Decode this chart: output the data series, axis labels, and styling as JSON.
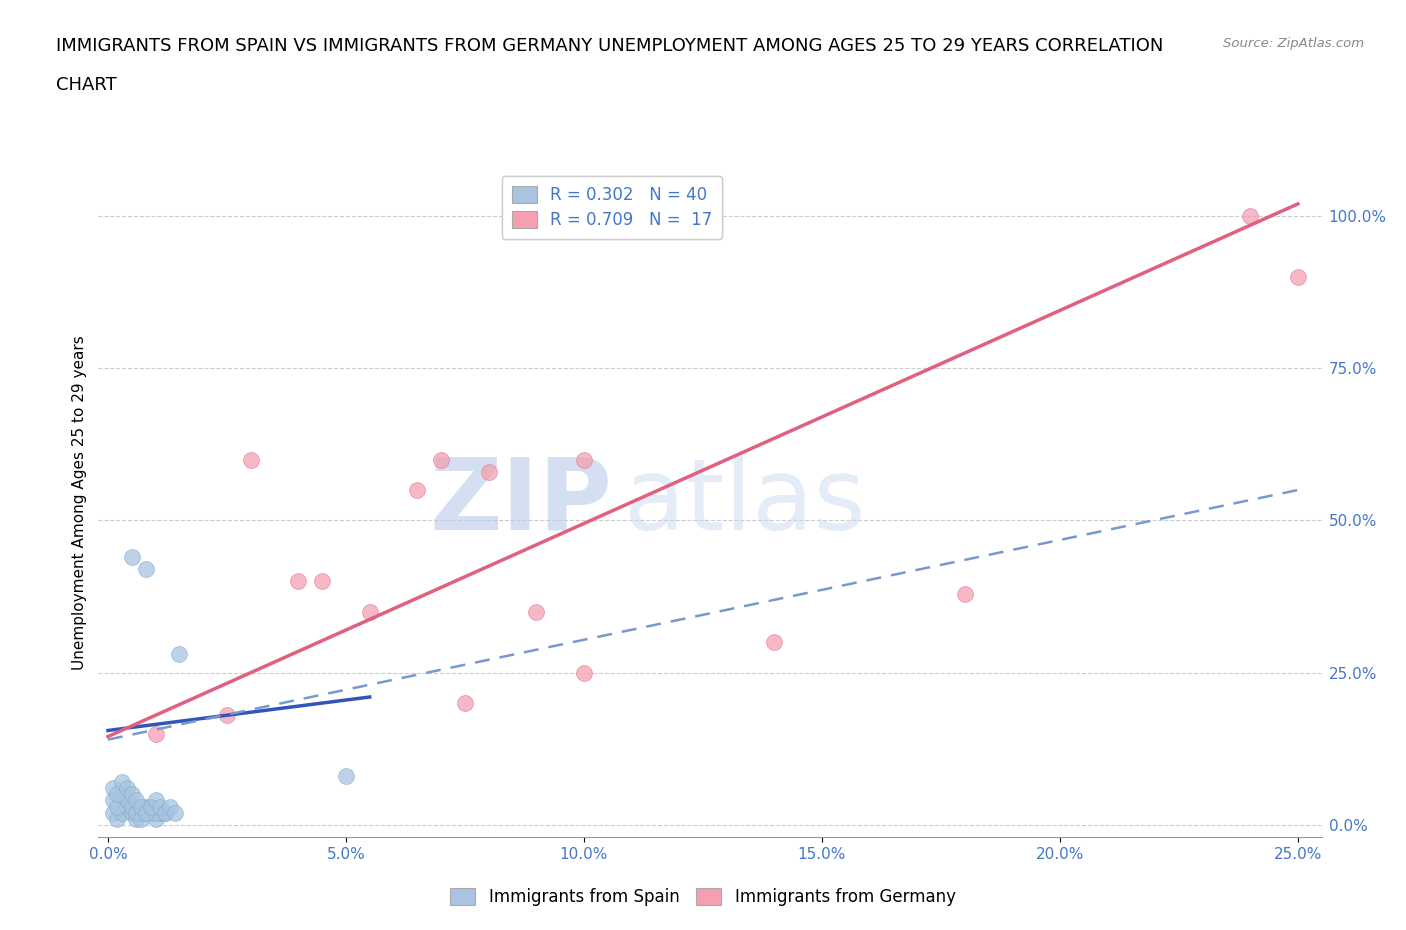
{
  "title_line1": "IMMIGRANTS FROM SPAIN VS IMMIGRANTS FROM GERMANY UNEMPLOYMENT AMONG AGES 25 TO 29 YEARS CORRELATION",
  "title_line2": "CHART",
  "source_text": "Source: ZipAtlas.com",
  "ylabel": "Unemployment Among Ages 25 to 29 years",
  "xlabel_vals": [
    0.0,
    0.05,
    0.1,
    0.15,
    0.2,
    0.25
  ],
  "ylabel_vals": [
    0.0,
    0.25,
    0.5,
    0.75,
    1.0
  ],
  "xlim": [
    -0.002,
    0.255
  ],
  "ylim": [
    -0.02,
    1.08
  ],
  "spain_color": "#a8c4e0",
  "spain_edge_color": "#7aaad0",
  "germany_color": "#f4a0b0",
  "germany_edge_color": "#e07090",
  "legend_label_spain": "R = 0.302   N = 40",
  "legend_label_germany": "R = 0.709   N =  17",
  "legend_label_spain_bottom": "Immigrants from Spain",
  "legend_label_germany_bottom": "Immigrants from Germany",
  "watermark_zip": "ZIP",
  "watermark_atlas": "atlas",
  "spain_scatter_x": [
    0.005,
    0.008,
    0.001,
    0.002,
    0.003,
    0.004,
    0.005,
    0.006,
    0.007,
    0.008,
    0.009,
    0.01,
    0.011,
    0.012,
    0.001,
    0.002,
    0.003,
    0.004,
    0.005,
    0.006,
    0.007,
    0.008,
    0.009,
    0.01,
    0.001,
    0.002,
    0.003,
    0.004,
    0.005,
    0.006,
    0.007,
    0.008,
    0.009,
    0.01,
    0.011,
    0.012,
    0.013,
    0.014,
    0.015,
    0.05
  ],
  "spain_scatter_y": [
    0.44,
    0.42,
    0.02,
    0.01,
    0.02,
    0.03,
    0.02,
    0.01,
    0.02,
    0.03,
    0.02,
    0.01,
    0.02,
    0.02,
    0.04,
    0.03,
    0.05,
    0.04,
    0.03,
    0.02,
    0.01,
    0.02,
    0.03,
    0.02,
    0.06,
    0.05,
    0.07,
    0.06,
    0.05,
    0.04,
    0.03,
    0.02,
    0.03,
    0.04,
    0.03,
    0.02,
    0.03,
    0.02,
    0.28,
    0.08
  ],
  "germany_scatter_x": [
    0.01,
    0.025,
    0.03,
    0.04,
    0.045,
    0.055,
    0.065,
    0.07,
    0.075,
    0.08,
    0.09,
    0.1,
    0.1,
    0.14,
    0.18,
    0.24,
    0.25
  ],
  "germany_scatter_y": [
    0.15,
    0.18,
    0.6,
    0.4,
    0.4,
    0.35,
    0.55,
    0.6,
    0.2,
    0.58,
    0.35,
    0.25,
    0.6,
    0.3,
    0.38,
    1.0,
    0.9
  ],
  "spain_solid_line_x": [
    0.0,
    0.055
  ],
  "spain_solid_line_y": [
    0.155,
    0.21
  ],
  "spain_dashed_line_x": [
    0.0,
    0.25
  ],
  "spain_dashed_line_y": [
    0.14,
    0.55
  ],
  "germany_solid_line_x": [
    0.0,
    0.25
  ],
  "germany_solid_line_y": [
    0.145,
    1.02
  ],
  "background_color": "#ffffff",
  "grid_color": "#cccccc",
  "title_fontsize": 13,
  "axis_label_fontsize": 11,
  "tick_fontsize": 11,
  "legend_fontsize": 12,
  "right_tick_color": "#4477cc",
  "bottom_tick_color": "#4477cc"
}
